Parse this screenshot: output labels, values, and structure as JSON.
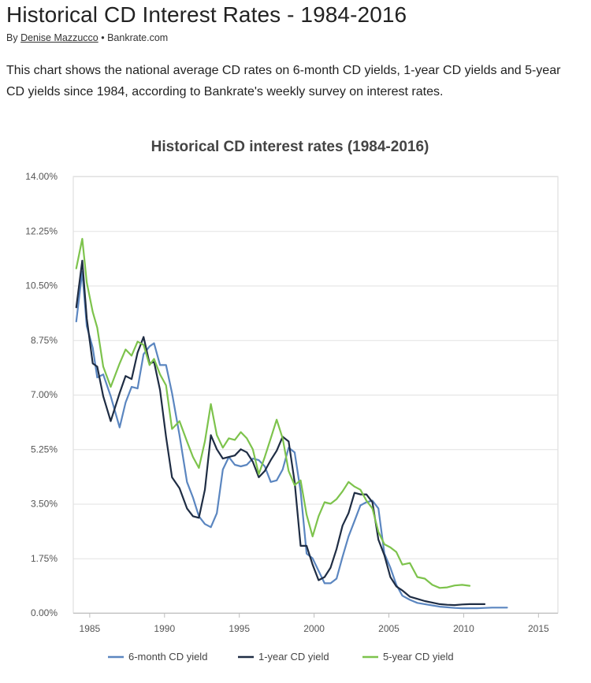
{
  "article": {
    "title": "Historical CD Interest Rates - 1984-2016",
    "byline_prefix": "By",
    "author": "Denise Mazzucco",
    "separator": "•",
    "source": "Bankrate.com",
    "intro": "This chart shows the national average CD rates on 6-month CD yields, 1-year CD yields and 5-year CD yields since 1984, according to Bankrate's weekly survey on interest rates."
  },
  "chart_data": {
    "type": "line",
    "title": "Historical CD interest rates (1984-2016)",
    "xlabel": "",
    "ylabel": "",
    "xlim": [
      1983.9,
      2016.3
    ],
    "ylim": [
      0,
      14
    ],
    "y_ticks": [
      "14.00%",
      "12.25%",
      "10.50%",
      "8.75%",
      "7.00%",
      "5.25%",
      "3.50%",
      "1.75%",
      "0.00%"
    ],
    "y_tick_values": [
      14,
      12.25,
      10.5,
      8.75,
      7,
      5.25,
      3.5,
      1.75,
      0
    ],
    "x_ticks": [
      "1985",
      "1990",
      "1995",
      "2000",
      "2005",
      "2010",
      "2015"
    ],
    "x_tick_values": [
      1985,
      1990,
      1995,
      2000,
      2005,
      2010,
      2015
    ],
    "grid": true,
    "legend_position": "bottom",
    "series": [
      {
        "name": "6-month CD yield",
        "color": "#5b86c0",
        "points": [
          [
            1984.1,
            9.35
          ],
          [
            1984.5,
            10.95
          ],
          [
            1984.8,
            9.2
          ],
          [
            1985.2,
            8.5
          ],
          [
            1985.5,
            7.55
          ],
          [
            1985.9,
            7.65
          ],
          [
            1986.4,
            6.95
          ],
          [
            1987.0,
            5.95
          ],
          [
            1987.4,
            6.75
          ],
          [
            1987.8,
            7.25
          ],
          [
            1988.2,
            7.2
          ],
          [
            1988.6,
            8.3
          ],
          [
            1989.0,
            8.55
          ],
          [
            1989.3,
            8.65
          ],
          [
            1989.7,
            7.95
          ],
          [
            1990.1,
            7.95
          ],
          [
            1990.5,
            7.05
          ],
          [
            1991.0,
            5.7
          ],
          [
            1991.5,
            4.2
          ],
          [
            1991.9,
            3.7
          ],
          [
            1992.3,
            3.1
          ],
          [
            1992.7,
            2.85
          ],
          [
            1993.1,
            2.75
          ],
          [
            1993.5,
            3.2
          ],
          [
            1993.9,
            4.6
          ],
          [
            1994.3,
            5.0
          ],
          [
            1994.7,
            4.75
          ],
          [
            1995.1,
            4.7
          ],
          [
            1995.5,
            4.75
          ],
          [
            1995.9,
            4.95
          ],
          [
            1996.3,
            4.9
          ],
          [
            1996.7,
            4.7
          ],
          [
            1997.1,
            4.2
          ],
          [
            1997.5,
            4.25
          ],
          [
            1997.9,
            4.6
          ],
          [
            1998.3,
            5.3
          ],
          [
            1998.7,
            5.15
          ],
          [
            1999.1,
            3.9
          ],
          [
            1999.5,
            1.9
          ],
          [
            1999.9,
            1.75
          ],
          [
            2000.3,
            1.35
          ],
          [
            2000.7,
            0.95
          ],
          [
            2001.1,
            0.95
          ],
          [
            2001.5,
            1.1
          ],
          [
            2001.9,
            1.8
          ],
          [
            2002.3,
            2.45
          ],
          [
            2002.7,
            2.95
          ],
          [
            2003.1,
            3.45
          ],
          [
            2003.5,
            3.55
          ],
          [
            2003.9,
            3.6
          ],
          [
            2004.3,
            3.35
          ],
          [
            2004.7,
            1.9
          ],
          [
            2005.1,
            1.45
          ],
          [
            2005.5,
            0.9
          ],
          [
            2005.9,
            0.55
          ],
          [
            2006.4,
            0.42
          ],
          [
            2006.9,
            0.32
          ],
          [
            2007.4,
            0.28
          ],
          [
            2007.9,
            0.24
          ],
          [
            2008.4,
            0.2
          ],
          [
            2008.9,
            0.18
          ],
          [
            2009.4,
            0.16
          ],
          [
            2009.9,
            0.15
          ],
          [
            2010.4,
            0.15
          ],
          [
            2010.9,
            0.15
          ],
          [
            2011.4,
            0.16
          ],
          [
            2011.9,
            0.17
          ],
          [
            2012.4,
            0.17
          ],
          [
            2012.9,
            0.17
          ]
        ]
      },
      {
        "name": "1-year CD yield",
        "color": "#1f2d44",
        "points": [
          [
            1984.1,
            9.8
          ],
          [
            1984.5,
            11.3
          ],
          [
            1984.8,
            9.45
          ],
          [
            1985.2,
            8.0
          ],
          [
            1985.5,
            7.9
          ],
          [
            1985.9,
            6.95
          ],
          [
            1986.4,
            6.15
          ],
          [
            1987.0,
            7.05
          ],
          [
            1987.4,
            7.6
          ],
          [
            1987.8,
            7.5
          ],
          [
            1988.2,
            8.35
          ],
          [
            1988.6,
            8.85
          ],
          [
            1989.0,
            8.0
          ],
          [
            1989.3,
            8.05
          ],
          [
            1989.7,
            7.15
          ],
          [
            1990.1,
            5.65
          ],
          [
            1990.5,
            4.35
          ],
          [
            1991.0,
            4.0
          ],
          [
            1991.5,
            3.35
          ],
          [
            1991.9,
            3.1
          ],
          [
            1992.3,
            3.05
          ],
          [
            1992.7,
            3.95
          ],
          [
            1993.1,
            5.7
          ],
          [
            1993.5,
            5.25
          ],
          [
            1993.9,
            4.95
          ],
          [
            1994.3,
            5.0
          ],
          [
            1994.7,
            5.05
          ],
          [
            1995.1,
            5.25
          ],
          [
            1995.5,
            5.15
          ],
          [
            1995.9,
            4.85
          ],
          [
            1996.3,
            4.35
          ],
          [
            1996.7,
            4.55
          ],
          [
            1997.1,
            4.9
          ],
          [
            1997.5,
            5.2
          ],
          [
            1997.9,
            5.65
          ],
          [
            1998.3,
            5.5
          ],
          [
            1998.7,
            4.2
          ],
          [
            1999.1,
            2.15
          ],
          [
            1999.5,
            2.15
          ],
          [
            1999.9,
            1.55
          ],
          [
            2000.3,
            1.05
          ],
          [
            2000.7,
            1.15
          ],
          [
            2001.1,
            1.45
          ],
          [
            2001.5,
            2.05
          ],
          [
            2001.9,
            2.8
          ],
          [
            2002.3,
            3.2
          ],
          [
            2002.7,
            3.85
          ],
          [
            2003.1,
            3.8
          ],
          [
            2003.5,
            3.8
          ],
          [
            2003.9,
            3.55
          ],
          [
            2004.3,
            2.35
          ],
          [
            2004.7,
            1.85
          ],
          [
            2005.1,
            1.15
          ],
          [
            2005.5,
            0.85
          ],
          [
            2005.9,
            0.72
          ],
          [
            2006.4,
            0.52
          ],
          [
            2006.9,
            0.45
          ],
          [
            2007.4,
            0.38
          ],
          [
            2007.9,
            0.33
          ],
          [
            2008.4,
            0.28
          ],
          [
            2008.9,
            0.26
          ],
          [
            2009.4,
            0.25
          ],
          [
            2009.9,
            0.27
          ],
          [
            2010.4,
            0.28
          ],
          [
            2010.9,
            0.28
          ],
          [
            2011.4,
            0.28
          ]
        ]
      },
      {
        "name": "5-year CD yield",
        "color": "#7dc34c",
        "points": [
          [
            1984.1,
            11.05
          ],
          [
            1984.5,
            12.0
          ],
          [
            1984.8,
            10.6
          ],
          [
            1985.2,
            9.65
          ],
          [
            1985.5,
            9.15
          ],
          [
            1985.9,
            7.9
          ],
          [
            1986.4,
            7.25
          ],
          [
            1987.0,
            8.0
          ],
          [
            1987.4,
            8.45
          ],
          [
            1987.8,
            8.25
          ],
          [
            1988.2,
            8.7
          ],
          [
            1988.6,
            8.6
          ],
          [
            1989.0,
            7.95
          ],
          [
            1989.3,
            8.15
          ],
          [
            1989.7,
            7.65
          ],
          [
            1990.1,
            7.3
          ],
          [
            1990.5,
            5.9
          ],
          [
            1991.0,
            6.15
          ],
          [
            1991.5,
            5.5
          ],
          [
            1991.9,
            5.0
          ],
          [
            1992.3,
            4.65
          ],
          [
            1992.7,
            5.5
          ],
          [
            1993.1,
            6.7
          ],
          [
            1993.5,
            5.7
          ],
          [
            1993.9,
            5.3
          ],
          [
            1994.3,
            5.6
          ],
          [
            1994.7,
            5.55
          ],
          [
            1995.1,
            5.8
          ],
          [
            1995.5,
            5.6
          ],
          [
            1995.9,
            5.25
          ],
          [
            1996.3,
            4.45
          ],
          [
            1996.7,
            5.0
          ],
          [
            1997.1,
            5.6
          ],
          [
            1997.5,
            6.2
          ],
          [
            1997.9,
            5.6
          ],
          [
            1998.3,
            4.55
          ],
          [
            1998.7,
            4.1
          ],
          [
            1999.1,
            4.25
          ],
          [
            1999.5,
            3.15
          ],
          [
            1999.9,
            2.45
          ],
          [
            2000.3,
            3.1
          ],
          [
            2000.7,
            3.55
          ],
          [
            2001.1,
            3.5
          ],
          [
            2001.5,
            3.65
          ],
          [
            2001.9,
            3.9
          ],
          [
            2002.3,
            4.2
          ],
          [
            2002.7,
            4.05
          ],
          [
            2003.1,
            3.95
          ],
          [
            2003.5,
            3.6
          ],
          [
            2003.9,
            3.35
          ],
          [
            2004.3,
            2.6
          ],
          [
            2004.7,
            2.2
          ],
          [
            2005.1,
            2.1
          ],
          [
            2005.5,
            1.95
          ],
          [
            2005.9,
            1.55
          ],
          [
            2006.4,
            1.6
          ],
          [
            2006.9,
            1.15
          ],
          [
            2007.4,
            1.1
          ],
          [
            2007.9,
            0.9
          ],
          [
            2008.4,
            0.8
          ],
          [
            2008.9,
            0.82
          ],
          [
            2009.4,
            0.88
          ],
          [
            2009.9,
            0.9
          ],
          [
            2010.4,
            0.87
          ]
        ]
      }
    ]
  }
}
